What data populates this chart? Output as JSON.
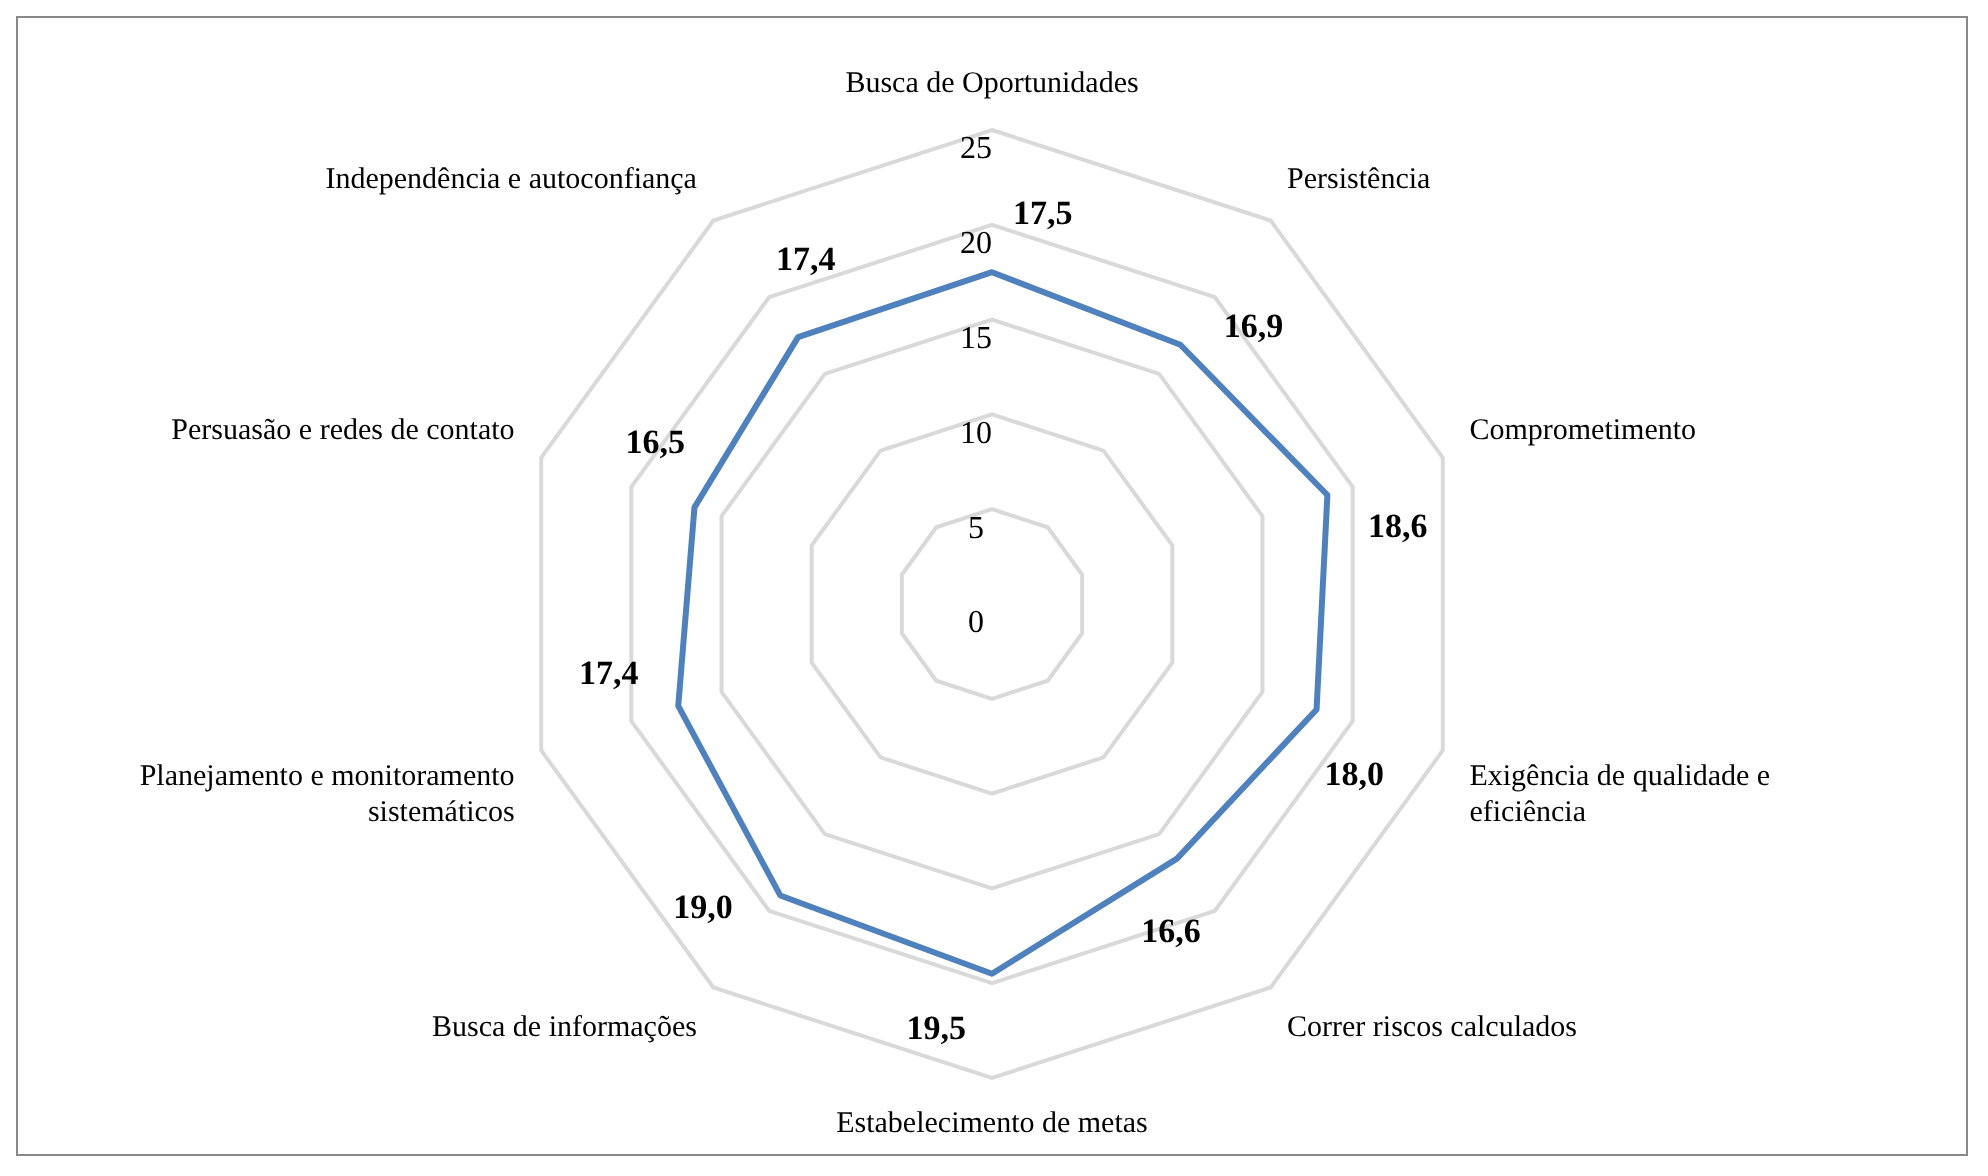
{
  "chart_data": {
    "type": "radar",
    "categories": [
      "Busca de Oportunidades",
      "Persistência",
      "Comprometimento",
      "Exigência de qualidade e eficiência",
      "Correr riscos calculados",
      "Estabelecimento de metas",
      "Busca de informações",
      "Planejamento e monitoramento sistemáticos",
      "Persuasão e redes de contato",
      "Independência e autoconfiança"
    ],
    "series": [
      {
        "color": "#4f81bd",
        "values": [
          17.5,
          16.9,
          18.6,
          18.0,
          16.6,
          19.5,
          19.0,
          17.4,
          16.5,
          17.4
        ],
        "value_labels": [
          "17,5",
          "16,9",
          "18,6",
          "18,0",
          "16,6",
          "19,5",
          "19,0",
          "17,4",
          "16,5",
          "17,4"
        ]
      }
    ],
    "ylim": [
      0,
      25
    ],
    "yticks": [
      0,
      5,
      10,
      15,
      20,
      25
    ],
    "grid": true,
    "legend": false,
    "marker": "none",
    "line_style": "solid"
  }
}
